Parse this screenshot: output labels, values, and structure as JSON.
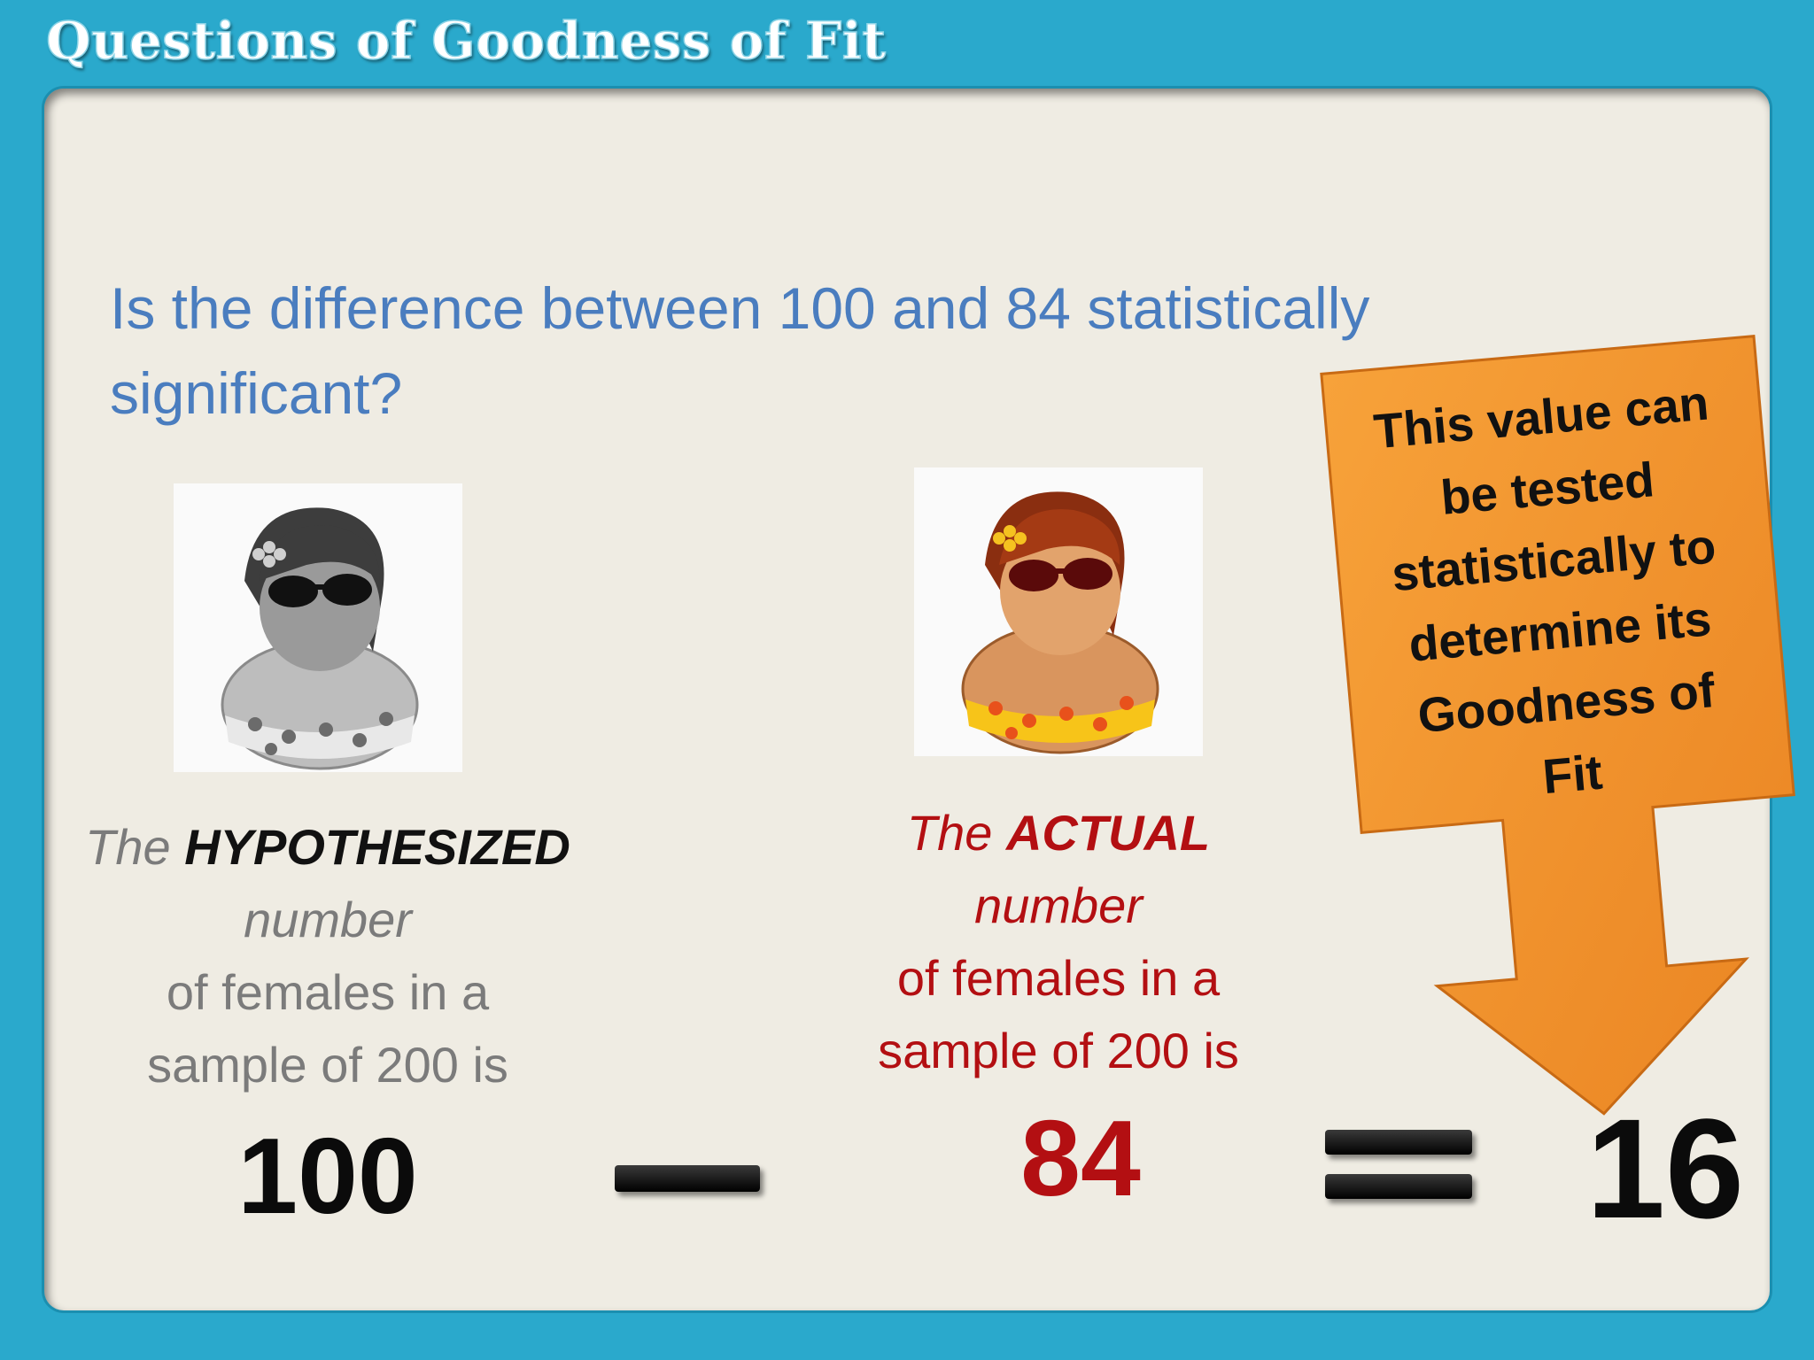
{
  "title": "Questions of Goodness of Fit",
  "question": "Is the difference between 100 and 84 statistically significant?",
  "hypothesized": {
    "prefix": "The",
    "emphasis": "HYPOTHESIZED",
    "line2": "number",
    "line3": "of females in a",
    "line4": "sample of 200 is",
    "value": "100",
    "icon": "woman-avatar-grayscale-icon"
  },
  "actual": {
    "prefix": "The",
    "emphasis": "ACTUAL",
    "line2": "number",
    "line3": "of females in a",
    "line4": "sample of 200 is",
    "value": "84",
    "icon": "woman-avatar-color-icon"
  },
  "operators": {
    "minus": "minus-sign",
    "equals": "equals-sign"
  },
  "result": "16",
  "callout": {
    "lines": [
      "This value can",
      "be tested",
      "statistically to",
      "determine its",
      "Goodness of",
      "Fit"
    ]
  },
  "colors": {
    "frame": "#2aa9cc",
    "panel": "#efece3",
    "question": "#4a7dbf",
    "actual": "#b30f12",
    "callout": "#f39a2e"
  }
}
